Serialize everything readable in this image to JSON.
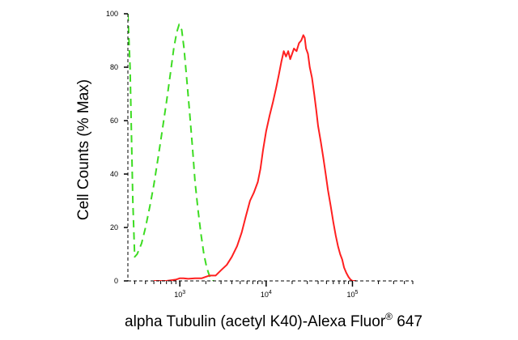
{
  "chart_data": {
    "type": "line",
    "title": "",
    "xlabel": "alpha Tubulin (acetyl K40)-Alexa Fluor® 647",
    "xlabel_main": "alpha Tubulin (acetyl K40)-Alexa Fluor",
    "xlabel_sup": "®",
    "xlabel_tail": " 647",
    "ylabel": "Cell Counts (% Max)",
    "xscale": "log",
    "xlim": [
      250,
      500000
    ],
    "ylim": [
      0,
      100
    ],
    "grid": false,
    "x_ticks": [
      {
        "value": 1000,
        "base": "10",
        "exp": "3"
      },
      {
        "value": 10000,
        "base": "10",
        "exp": "4"
      },
      {
        "value": 100000,
        "base": "10",
        "exp": "5"
      }
    ],
    "y_ticks": [
      {
        "value": 0,
        "label": "0"
      },
      {
        "value": 20,
        "label": "20"
      },
      {
        "value": 40,
        "label": "40"
      },
      {
        "value": 60,
        "label": "60"
      },
      {
        "value": 80,
        "label": "80"
      },
      {
        "value": 100,
        "label": "100"
      }
    ],
    "series": [
      {
        "color": "#3ddc22",
        "dash": "dashed",
        "points": [
          [
            250,
            100
          ],
          [
            265,
            80
          ],
          [
            285,
            30
          ],
          [
            300,
            9
          ],
          [
            320,
            10
          ],
          [
            360,
            14
          ],
          [
            400,
            20
          ],
          [
            450,
            28
          ],
          [
            500,
            36
          ],
          [
            560,
            46
          ],
          [
            630,
            57
          ],
          [
            700,
            67
          ],
          [
            780,
            78
          ],
          [
            850,
            87
          ],
          [
            920,
            93
          ],
          [
            980,
            96
          ],
          [
            1050,
            94
          ],
          [
            1120,
            87
          ],
          [
            1200,
            76
          ],
          [
            1300,
            63
          ],
          [
            1400,
            50
          ],
          [
            1500,
            37
          ],
          [
            1620,
            27
          ],
          [
            1750,
            18
          ],
          [
            1900,
            10
          ],
          [
            2050,
            5
          ],
          [
            2200,
            2
          ],
          [
            2350,
            0
          ],
          [
            2500,
            0
          ]
        ]
      },
      {
        "color": "#ff2020",
        "dash": "solid",
        "points": [
          [
            500,
            0
          ],
          [
            700,
            0
          ],
          [
            900,
            0.5
          ],
          [
            1000,
            1
          ],
          [
            1100,
            1
          ],
          [
            1250,
            0.8
          ],
          [
            1500,
            1
          ],
          [
            1800,
            1
          ],
          [
            2200,
            2
          ],
          [
            2600,
            2
          ],
          [
            3000,
            4
          ],
          [
            3500,
            6
          ],
          [
            4000,
            9
          ],
          [
            4600,
            13
          ],
          [
            5200,
            18
          ],
          [
            5800,
            24
          ],
          [
            6500,
            30
          ],
          [
            7200,
            33
          ],
          [
            8000,
            37
          ],
          [
            8600,
            42
          ],
          [
            9200,
            49
          ],
          [
            10000,
            56
          ],
          [
            11000,
            62
          ],
          [
            12000,
            67
          ],
          [
            13000,
            72
          ],
          [
            14000,
            77
          ],
          [
            15000,
            82
          ],
          [
            16000,
            86
          ],
          [
            17000,
            84
          ],
          [
            18000,
            86
          ],
          [
            19000,
            83
          ],
          [
            20000,
            85
          ],
          [
            21000,
            87
          ],
          [
            22500,
            86
          ],
          [
            24000,
            89
          ],
          [
            25500,
            90
          ],
          [
            27000,
            92
          ],
          [
            28000,
            91
          ],
          [
            29000,
            87
          ],
          [
            30500,
            85
          ],
          [
            32000,
            80
          ],
          [
            34000,
            76
          ],
          [
            36000,
            70
          ],
          [
            38000,
            64
          ],
          [
            40000,
            58
          ],
          [
            43000,
            52
          ],
          [
            46000,
            46
          ],
          [
            49000,
            40
          ],
          [
            52000,
            34
          ],
          [
            56000,
            28
          ],
          [
            60000,
            22
          ],
          [
            64000,
            17
          ],
          [
            68000,
            13
          ],
          [
            72000,
            10
          ],
          [
            76000,
            8
          ],
          [
            80000,
            5
          ],
          [
            85000,
            3
          ],
          [
            90000,
            1.5
          ],
          [
            95000,
            0.5
          ],
          [
            100000,
            0
          ],
          [
            110000,
            0
          ]
        ]
      }
    ]
  }
}
